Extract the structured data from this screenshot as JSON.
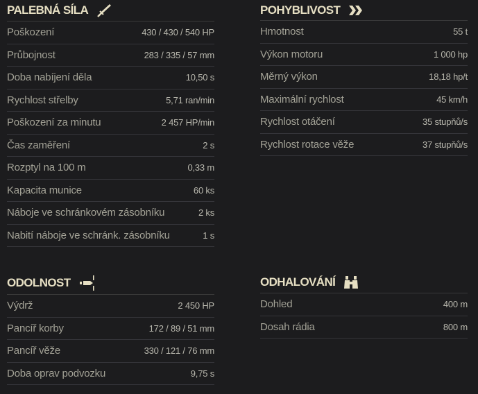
{
  "sections": {
    "firepower": {
      "title": "PALEBNÁ SÍLA",
      "icon": "sword-icon",
      "rows": [
        {
          "label": "Poškození",
          "value": "430 / 430 / 540 HP"
        },
        {
          "label": "Průbojnost",
          "value": "283 / 335 / 57 mm"
        },
        {
          "label": "Doba nabíjení děla",
          "value": "10,50 s"
        },
        {
          "label": "Rychlost střelby",
          "value": "5,71 ran/min"
        },
        {
          "label": "Poškození za minutu",
          "value": "2 457 HP/min"
        },
        {
          "label": "Čas zaměření",
          "value": "2 s"
        },
        {
          "label": "Rozptyl na 100 m",
          "value": "0,33 m"
        },
        {
          "label": "Kapacita munice",
          "value": "60 ks"
        },
        {
          "label": "Náboje ve schránkovém zásobníku",
          "value": "2 ks"
        },
        {
          "label": "Nabití náboje ve schránk. zásobníku",
          "value": "1 s"
        }
      ]
    },
    "mobility": {
      "title": "POHYBLIVOST",
      "icon": "double-chevron-icon",
      "rows": [
        {
          "label": "Hmotnost",
          "value": "55 t"
        },
        {
          "label": "Výkon motoru",
          "value": "1 000 hp"
        },
        {
          "label": "Měrný výkon",
          "value": "18,18 hp/t"
        },
        {
          "label": "Maximální rychlost",
          "value": "45 km/h"
        },
        {
          "label": "Rychlost otáčení",
          "value": "35 stupňů/s"
        },
        {
          "label": "Rychlost rotace věže",
          "value": "37 stupňů/s"
        }
      ]
    },
    "survivability": {
      "title": "ODOLNOST",
      "icon": "shell-hit-icon",
      "rows": [
        {
          "label": "Výdrž",
          "value": "2 450 HP"
        },
        {
          "label": "Pancíř korby",
          "value": "172 / 89 / 51 mm"
        },
        {
          "label": "Pancíř věže",
          "value": "330 / 121 / 76 mm"
        },
        {
          "label": "Doba oprav podvozku",
          "value": "9,75 s"
        }
      ]
    },
    "spotting": {
      "title": "ODHALOVÁNÍ",
      "icon": "binoculars-icon",
      "rows": [
        {
          "label": "Dohled",
          "value": "400 m"
        },
        {
          "label": "Dosah rádia",
          "value": "800 m"
        }
      ]
    }
  },
  "colors": {
    "background": "#1c1c1e",
    "title": "#e6dfc3",
    "label": "#a3a296",
    "value": "#b9b8ae",
    "divider": "#3a3a3a"
  }
}
